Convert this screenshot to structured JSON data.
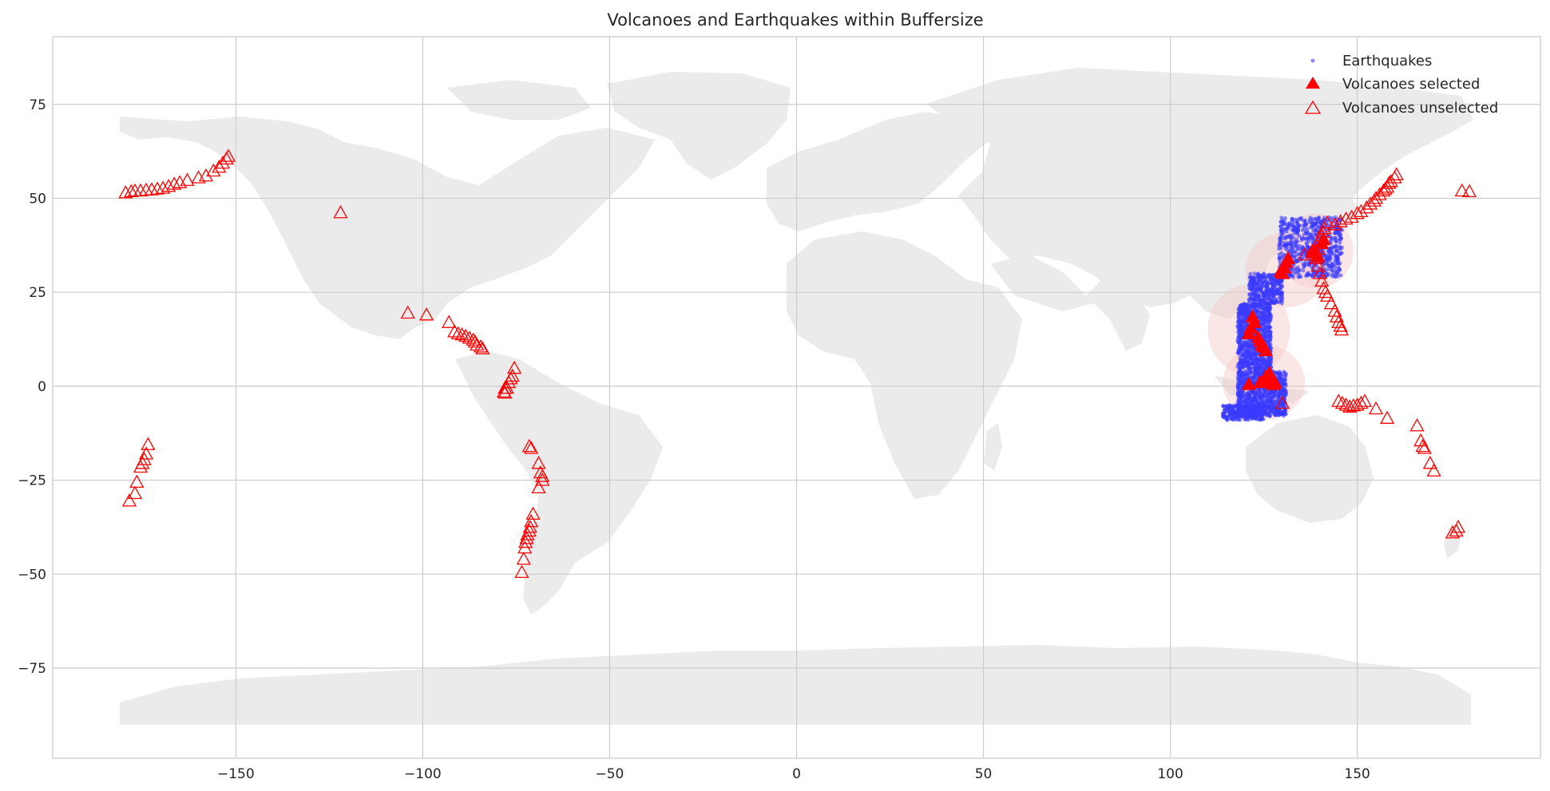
{
  "chart_data": {
    "type": "scatter",
    "title": "Volcanoes and Earthquakes within Buffersize",
    "xlabel": "",
    "ylabel": "",
    "xlim": [
      -199,
      199
    ],
    "ylim": [
      -99,
      93
    ],
    "x_ticks": [
      -150,
      -100,
      -50,
      0,
      50,
      100,
      150
    ],
    "x_tick_labels": [
      "−150",
      "−100",
      "−50",
      "0",
      "50",
      "100",
      "150"
    ],
    "y_ticks": [
      75,
      50,
      25,
      0,
      -25,
      -50,
      -75
    ],
    "y_tick_labels": [
      "75",
      "50",
      "25",
      "0",
      "−25",
      "−50",
      "−75"
    ],
    "grid": true,
    "legend_position": "top-right",
    "legend": [
      {
        "label": "Earthquakes",
        "marker": "dot",
        "color": "#4040ff"
      },
      {
        "label": "Volcanoes selected",
        "marker": "filled-triangle",
        "color": "#ff0000"
      },
      {
        "label": "Volcanoes unselected",
        "marker": "open-triangle",
        "color": "#ff0000"
      }
    ],
    "colors": {
      "land": "#ebebeb",
      "earthquake": "#3b3bff",
      "volcano": "#ff0000",
      "buffer": "#f6c8c8",
      "grid": "#cccccc",
      "axes": "#cccccc"
    },
    "series": [
      {
        "name": "Volcanoes unselected",
        "points": [
          [
            -179.5,
            51.5
          ],
          [
            -178,
            51.8
          ],
          [
            -177,
            52
          ],
          [
            -175.5,
            52
          ],
          [
            -174,
            52.2
          ],
          [
            -172.5,
            52.3
          ],
          [
            -171,
            52.5
          ],
          [
            -169.5,
            52.7
          ],
          [
            -168,
            53.2
          ],
          [
            -166.5,
            53.8
          ],
          [
            -165,
            54.2
          ],
          [
            -163,
            54.8
          ],
          [
            -160,
            55.5
          ],
          [
            -158,
            56
          ],
          [
            -156,
            57.3
          ],
          [
            -154.5,
            58.3
          ],
          [
            -153.5,
            59.4
          ],
          [
            -152.5,
            60.5
          ],
          [
            -152,
            61.2
          ],
          [
            -122,
            46.2
          ],
          [
            -104,
            19.5
          ],
          [
            -99,
            19
          ],
          [
            -93,
            17
          ],
          [
            -91.5,
            14.5
          ],
          [
            -90.5,
            14
          ],
          [
            -89.5,
            13.7
          ],
          [
            -88.5,
            13.3
          ],
          [
            -87.5,
            12.8
          ],
          [
            -86.5,
            12.3
          ],
          [
            -86,
            11.8
          ],
          [
            -85.5,
            11
          ],
          [
            -84.5,
            10.5
          ],
          [
            -84,
            10
          ],
          [
            -78,
            -0.5
          ],
          [
            -78.3,
            -1.5
          ],
          [
            -78,
            -1.8
          ],
          [
            -77.5,
            -0.5
          ],
          [
            -77,
            1
          ],
          [
            -76.5,
            2
          ],
          [
            -76,
            2.7
          ],
          [
            -75.5,
            4.8
          ],
          [
            -71.5,
            -16
          ],
          [
            -71,
            -16.5
          ],
          [
            -69,
            -20.5
          ],
          [
            -68.5,
            -23
          ],
          [
            -68,
            -24
          ],
          [
            -68,
            -25
          ],
          [
            -69,
            -27
          ],
          [
            -70.5,
            -34
          ],
          [
            -71,
            -36
          ],
          [
            -71.3,
            -37.5
          ],
          [
            -71.5,
            -38.5
          ],
          [
            -72,
            -39.5
          ],
          [
            -72.2,
            -40.5
          ],
          [
            -72.5,
            -41.5
          ],
          [
            -72.7,
            -43
          ],
          [
            -73,
            -46
          ],
          [
            -73.5,
            -49.5
          ],
          [
            -178.5,
            -30.5
          ],
          [
            -177,
            -28.5
          ],
          [
            -176.5,
            -25.5
          ],
          [
            -175.5,
            -21.5
          ],
          [
            -175,
            -20.5
          ],
          [
            -174.5,
            -19.5
          ],
          [
            -174,
            -18
          ],
          [
            -173.5,
            -15.5
          ],
          [
            130,
            -4.5
          ],
          [
            136,
            35
          ],
          [
            138,
            36
          ],
          [
            139,
            34
          ],
          [
            139.5,
            32
          ],
          [
            140,
            30
          ],
          [
            140.5,
            28
          ],
          [
            141,
            26
          ],
          [
            141.5,
            25
          ],
          [
            142,
            24
          ],
          [
            143,
            22
          ],
          [
            144,
            20
          ],
          [
            144.5,
            18.5
          ],
          [
            145,
            17
          ],
          [
            145.5,
            16
          ],
          [
            145.8,
            15
          ],
          [
            139.5,
            36.5
          ],
          [
            139.5,
            38
          ],
          [
            140,
            39
          ],
          [
            140.5,
            40
          ],
          [
            140.8,
            41
          ],
          [
            141.2,
            42
          ],
          [
            142,
            43.5
          ],
          [
            144,
            43
          ],
          [
            145.5,
            43.8
          ],
          [
            147,
            44.5
          ],
          [
            148.5,
            45
          ],
          [
            150,
            46
          ],
          [
            151,
            46.5
          ],
          [
            152.5,
            47.5
          ],
          [
            153.5,
            48.5
          ],
          [
            154.5,
            49.3
          ],
          [
            155,
            50
          ],
          [
            156,
            51
          ],
          [
            157,
            52
          ],
          [
            157.5,
            52.5
          ],
          [
            158,
            53
          ],
          [
            158.5,
            54
          ],
          [
            159,
            54.5
          ],
          [
            160,
            55.5
          ],
          [
            160.5,
            56.3
          ],
          [
            178,
            52
          ],
          [
            180,
            51.8
          ],
          [
            145,
            -4
          ],
          [
            146,
            -4.5
          ],
          [
            147,
            -5
          ],
          [
            148,
            -5.5
          ],
          [
            149,
            -5.2
          ],
          [
            150,
            -5
          ],
          [
            151,
            -4.5
          ],
          [
            152,
            -4
          ],
          [
            155,
            -6
          ],
          [
            158,
            -8.5
          ],
          [
            166,
            -10.5
          ],
          [
            167,
            -14.5
          ],
          [
            167.5,
            -16
          ],
          [
            168,
            -16.5
          ],
          [
            169.5,
            -20.5
          ],
          [
            170.5,
            -22.5
          ],
          [
            175.5,
            -39
          ],
          [
            176.5,
            -38.5
          ],
          [
            177,
            -37.5
          ]
        ]
      },
      {
        "name": "Volcanoes selected",
        "points": [
          [
            130,
            30
          ],
          [
            130.5,
            31.5
          ],
          [
            131,
            33
          ],
          [
            131.5,
            34
          ],
          [
            129.5,
            30.5
          ],
          [
            138,
            35.5
          ],
          [
            138.8,
            36
          ],
          [
            139.5,
            34.5
          ],
          [
            140.5,
            38
          ],
          [
            141,
            39
          ],
          [
            121,
            14
          ],
          [
            121.5,
            15.5
          ],
          [
            122,
            18.5
          ],
          [
            122.5,
            17
          ],
          [
            123.5,
            13
          ],
          [
            124,
            12
          ],
          [
            124.5,
            11
          ],
          [
            125,
            10.5
          ],
          [
            125.5,
            9.5
          ],
          [
            121,
            0.5
          ],
          [
            124,
            1
          ],
          [
            125,
            1.5
          ],
          [
            125.5,
            2.5
          ],
          [
            126,
            2
          ],
          [
            127,
            1
          ],
          [
            127.5,
            0.5
          ],
          [
            128,
            1
          ],
          [
            126.5,
            3.5
          ]
        ]
      },
      {
        "name": "Earthquakes",
        "regions": [
          {
            "x": [
              129,
              146
            ],
            "y": [
              29,
              45
            ],
            "count": 650
          },
          {
            "x": [
              121,
              130
            ],
            "y": [
              22,
              30
            ],
            "count": 350
          },
          {
            "x": [
              118,
              127
            ],
            "y": [
              4,
              22
            ],
            "count": 900
          },
          {
            "x": [
              118,
              131
            ],
            "y": [
              -8,
              4
            ],
            "count": 900
          },
          {
            "x": [
              114,
              125
            ],
            "y": [
              -9,
              -5
            ],
            "count": 250
          }
        ]
      }
    ],
    "buffers": [
      {
        "cx": 131,
        "cy": 31,
        "rx": 11,
        "ry": 10
      },
      {
        "cx": 139,
        "cy": 36,
        "rx": 10,
        "ry": 10
      },
      {
        "cx": 121,
        "cy": 15,
        "rx": 11,
        "ry": 12
      },
      {
        "cx": 125,
        "cy": 1,
        "rx": 11,
        "ry": 10
      }
    ]
  }
}
